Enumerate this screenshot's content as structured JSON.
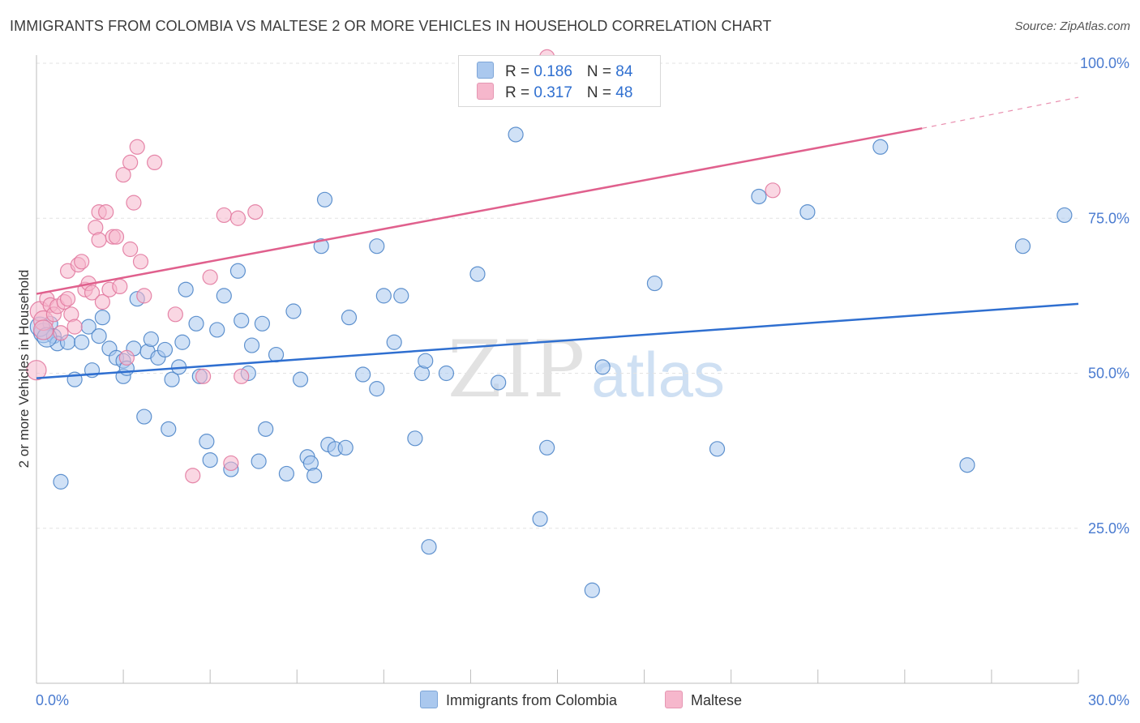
{
  "header": {
    "title": "IMMIGRANTS FROM COLOMBIA VS MALTESE 2 OR MORE VEHICLES IN HOUSEHOLD CORRELATION CHART",
    "source": "Source: ZipAtlas.com"
  },
  "watermark": {
    "zip": "ZIP",
    "atlas": "atlas"
  },
  "legend": {
    "rows": [
      {
        "r_label": "R = ",
        "r_value": "0.186",
        "n_label": "N = ",
        "n_value": "84",
        "color": "#aac8ee"
      },
      {
        "r_label": "R = ",
        "r_value": "0.317",
        "n_label": "N = ",
        "n_value": "48",
        "color": "#f6b7cc"
      }
    ]
  },
  "chart_data": {
    "type": "scatter",
    "title": "IMMIGRANTS FROM COLOMBIA VS MALTESE 2 OR MORE VEHICLES IN HOUSEHOLD CORRELATION CHART",
    "xlabel": "",
    "ylabel": "2 or more Vehicles in Household",
    "xlim": [
      0,
      30
    ],
    "ylim": [
      0,
      100
    ],
    "x_tick_labels": [
      "0.0%",
      "30.0%"
    ],
    "y_ticks": [
      25,
      50,
      75,
      100
    ],
    "y_tick_labels": [
      "25.0%",
      "50.0%",
      "75.0%",
      "100.0%"
    ],
    "grid": true,
    "legend_position": "top-center",
    "series": [
      {
        "name": "Immigrants from Colombia",
        "color": "#aac8ee",
        "edge": "#4f86c9",
        "trend": {
          "x": [
            0,
            30
          ],
          "y": [
            49.2,
            61.2
          ],
          "color": "#2f6fd0"
        },
        "points": [
          [
            0.2,
            56.5
          ],
          [
            0.4,
            58.0
          ],
          [
            0.5,
            56.0
          ],
          [
            0.6,
            54.8
          ],
          [
            0.7,
            32.5
          ],
          [
            0.9,
            55.0
          ],
          [
            1.1,
            49.0
          ],
          [
            1.3,
            55.0
          ],
          [
            1.5,
            57.5
          ],
          [
            1.6,
            50.5
          ],
          [
            1.8,
            56.0
          ],
          [
            1.9,
            59.0
          ],
          [
            2.1,
            54.0
          ],
          [
            2.3,
            52.5
          ],
          [
            2.5,
            52.0
          ],
          [
            2.5,
            49.5
          ],
          [
            2.6,
            50.8
          ],
          [
            2.8,
            54.0
          ],
          [
            2.9,
            62.0
          ],
          [
            3.1,
            43.0
          ],
          [
            3.2,
            53.5
          ],
          [
            3.3,
            55.5
          ],
          [
            3.5,
            52.5
          ],
          [
            3.7,
            53.8
          ],
          [
            3.8,
            41.0
          ],
          [
            3.9,
            49.0
          ],
          [
            4.1,
            51.0
          ],
          [
            4.2,
            55.0
          ],
          [
            4.3,
            63.5
          ],
          [
            4.6,
            58.0
          ],
          [
            4.7,
            49.5
          ],
          [
            4.9,
            39.0
          ],
          [
            5.0,
            36.0
          ],
          [
            5.2,
            57.0
          ],
          [
            5.4,
            62.5
          ],
          [
            5.6,
            34.5
          ],
          [
            5.8,
            66.5
          ],
          [
            5.9,
            58.5
          ],
          [
            6.1,
            50.0
          ],
          [
            6.2,
            54.5
          ],
          [
            6.4,
            35.8
          ],
          [
            6.5,
            58.0
          ],
          [
            6.6,
            41.0
          ],
          [
            6.9,
            53.0
          ],
          [
            7.2,
            33.8
          ],
          [
            7.4,
            60.0
          ],
          [
            7.6,
            49.0
          ],
          [
            7.8,
            36.5
          ],
          [
            7.9,
            35.5
          ],
          [
            8.0,
            33.5
          ],
          [
            8.2,
            70.5
          ],
          [
            8.3,
            78.0
          ],
          [
            8.4,
            38.5
          ],
          [
            8.6,
            37.8
          ],
          [
            8.9,
            38.0
          ],
          [
            9.0,
            59.0
          ],
          [
            9.4,
            49.8
          ],
          [
            9.8,
            70.5
          ],
          [
            9.8,
            47.5
          ],
          [
            10.0,
            62.5
          ],
          [
            10.3,
            55.0
          ],
          [
            10.5,
            62.5
          ],
          [
            10.9,
            39.5
          ],
          [
            11.1,
            50.0
          ],
          [
            11.2,
            52.0
          ],
          [
            11.3,
            22.0
          ],
          [
            11.8,
            50.0
          ],
          [
            12.7,
            66.0
          ],
          [
            13.3,
            48.5
          ],
          [
            13.8,
            88.5
          ],
          [
            14.5,
            26.5
          ],
          [
            14.7,
            38.0
          ],
          [
            16.0,
            15.0
          ],
          [
            16.3,
            51.0
          ],
          [
            17.8,
            64.5
          ],
          [
            19.6,
            37.8
          ],
          [
            20.8,
            78.5
          ],
          [
            22.2,
            76.0
          ],
          [
            24.3,
            86.5
          ],
          [
            26.8,
            35.2
          ],
          [
            28.4,
            70.5
          ],
          [
            29.6,
            75.5
          ],
          [
            0.1,
            57.5
          ],
          [
            0.3,
            55.8
          ]
        ]
      },
      {
        "name": "Maltese",
        "color": "#f6b7cc",
        "edge": "#e27aa0",
        "trend": {
          "x": [
            0,
            25.5
          ],
          "y": [
            62.8,
            89.5
          ],
          "dash_to": [
            30,
            94.5
          ],
          "color": "#e0608d"
        },
        "points": [
          [
            0.0,
            50.5
          ],
          [
            0.1,
            60.0
          ],
          [
            0.2,
            58.5
          ],
          [
            0.3,
            62.0
          ],
          [
            0.4,
            61.0
          ],
          [
            0.5,
            59.5
          ],
          [
            0.6,
            60.8
          ],
          [
            0.7,
            56.5
          ],
          [
            0.8,
            61.5
          ],
          [
            0.9,
            66.5
          ],
          [
            1.0,
            59.5
          ],
          [
            1.1,
            57.5
          ],
          [
            1.2,
            67.5
          ],
          [
            1.3,
            68.0
          ],
          [
            1.4,
            63.5
          ],
          [
            1.5,
            64.5
          ],
          [
            1.6,
            63.0
          ],
          [
            1.7,
            73.5
          ],
          [
            1.8,
            76.0
          ],
          [
            1.8,
            71.5
          ],
          [
            1.9,
            61.5
          ],
          [
            2.0,
            76.0
          ],
          [
            2.1,
            63.5
          ],
          [
            2.2,
            72.0
          ],
          [
            2.3,
            72.0
          ],
          [
            2.4,
            64.0
          ],
          [
            2.5,
            82.0
          ],
          [
            2.6,
            52.5
          ],
          [
            2.7,
            84.0
          ],
          [
            2.7,
            70.0
          ],
          [
            2.8,
            77.5
          ],
          [
            2.9,
            86.5
          ],
          [
            3.0,
            68.0
          ],
          [
            3.1,
            62.5
          ],
          [
            3.4,
            84.0
          ],
          [
            4.0,
            59.5
          ],
          [
            4.5,
            33.5
          ],
          [
            4.8,
            49.5
          ],
          [
            5.0,
            65.5
          ],
          [
            5.4,
            75.5
          ],
          [
            5.6,
            35.5
          ],
          [
            5.8,
            75.0
          ],
          [
            5.9,
            49.5
          ],
          [
            6.3,
            76.0
          ],
          [
            14.7,
            101.0
          ],
          [
            21.2,
            79.5
          ],
          [
            0.2,
            57.0
          ],
          [
            0.9,
            62.0
          ]
        ]
      }
    ]
  },
  "bottom_legend": {
    "items": [
      {
        "label": "Immigrants from Colombia",
        "color": "#aac8ee"
      },
      {
        "label": "Maltese",
        "color": "#f6b7cc"
      }
    ]
  }
}
